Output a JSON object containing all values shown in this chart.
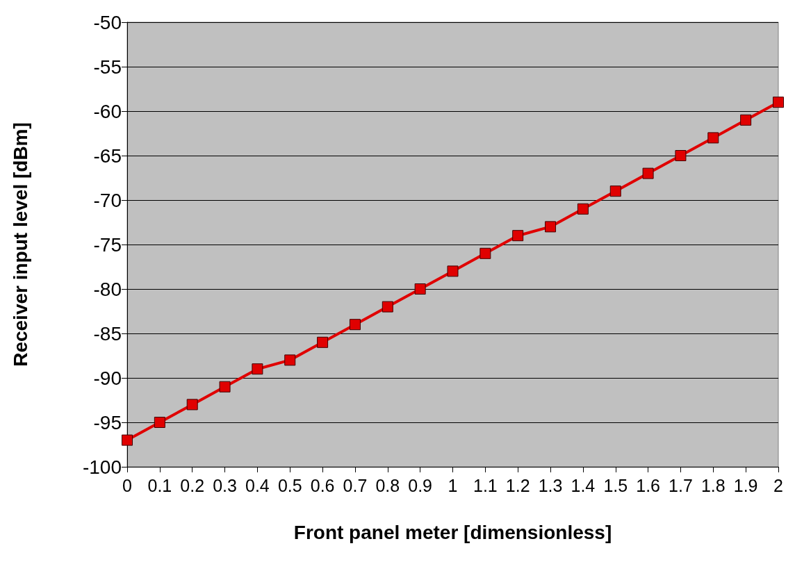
{
  "chart_data": {
    "type": "line",
    "xlabel": "Front panel meter [dimensionless]",
    "ylabel": "Receiver input level [dBm]",
    "x": [
      0,
      0.1,
      0.2,
      0.3,
      0.4,
      0.5,
      0.6,
      0.7,
      0.8,
      0.9,
      1,
      1.1,
      1.2,
      1.3,
      1.4,
      1.5,
      1.6,
      1.7,
      1.8,
      1.9,
      2
    ],
    "series": [
      {
        "color": "#e00000",
        "values": [
          -97,
          -95,
          -93,
          -91,
          -89,
          -88,
          -86,
          -84,
          -82,
          -80,
          -78,
          -76,
          -74,
          -73,
          -71,
          -69,
          -67,
          -65,
          -63,
          -61,
          -59
        ]
      }
    ],
    "xlim": [
      0,
      2
    ],
    "xticks": [
      0,
      0.1,
      0.2,
      0.3,
      0.4,
      0.5,
      0.6,
      0.7,
      0.8,
      0.9,
      1,
      1.1,
      1.2,
      1.3,
      1.4,
      1.5,
      1.6,
      1.7,
      1.8,
      1.9,
      2
    ],
    "ylim": [
      -100,
      -50
    ],
    "yticks": [
      -100,
      -95,
      -90,
      -85,
      -80,
      -75,
      -70,
      -65,
      -60,
      -55,
      -50
    ],
    "grid": "y",
    "marker": "square",
    "line_style": "solid"
  }
}
